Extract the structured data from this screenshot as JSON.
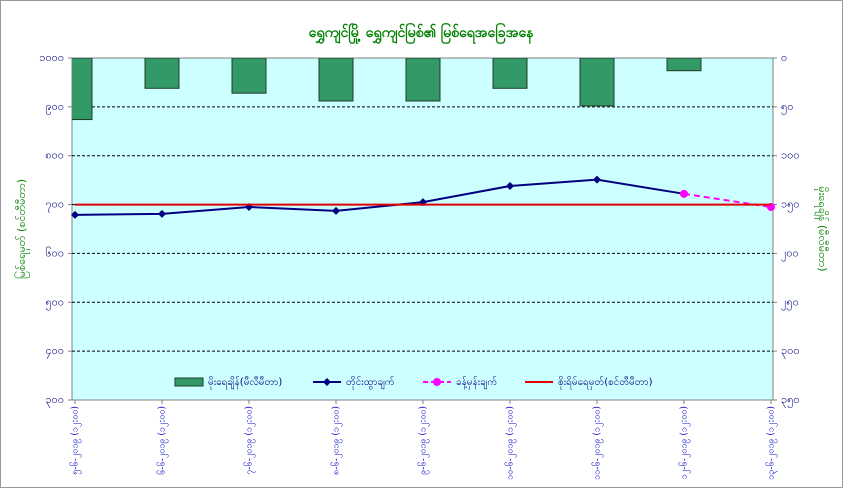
{
  "chart_data": {
    "type": "line",
    "title": "ရွှေကျင်မြို့ ရွှေကျင်မြစ်၏ မြစ်ရေအခြေအနေ",
    "ylabel": "မြစ်ရေမှတ် (စင်တီမီတာ)",
    "y2label": "မိုးရေချိန် (မီလီမီတာ)",
    "categories": [
      "၅-၆-၂၀၁၉ (၁၂:၀၀)",
      "၆-၆-၂၀၁၉ (၁၂:၀၀)",
      "၇-၆-၂၀၁၉ (၁၂:၀၀)",
      "၈-၆-၂၀၁၉ (၁၂:၀၀)",
      "၉-၆-၂၀၁၉ (၁၂:၀၀)",
      "၁၀-၆-၂၀၁၉ (၁၂:၀၀)",
      "၁၁-၆-၂၀၁၉ (၁၂:၀၀)",
      "၁၂-၆-၂၀၁၉ (၁၂:၀၀)",
      "၁၃-၆-၂၀၁၉ (၁၂:၀၀)"
    ],
    "ylim": [
      300,
      1000
    ],
    "yticks": [
      {
        "value": 300,
        "label": "၃၀၀"
      },
      {
        "value": 400,
        "label": "၄၀၀"
      },
      {
        "value": 500,
        "label": "၅၀၀"
      },
      {
        "value": 600,
        "label": "၆၀၀"
      },
      {
        "value": 700,
        "label": "၇၀၀"
      },
      {
        "value": 800,
        "label": "၈၀၀"
      },
      {
        "value": 900,
        "label": "၉၀၀"
      },
      {
        "value": 1000,
        "label": "၁၀၀၀"
      }
    ],
    "y2lim": [
      0,
      350
    ],
    "y2_reversed": true,
    "y2ticks": [
      {
        "value": 0,
        "label": "၀"
      },
      {
        "value": 50,
        "label": "၅၀"
      },
      {
        "value": 100,
        "label": "၁၀၀"
      },
      {
        "value": 150,
        "label": "၁၅၀"
      },
      {
        "value": 200,
        "label": "၂၀၀"
      },
      {
        "value": 250,
        "label": "၂၅၀"
      },
      {
        "value": 300,
        "label": "၃၀၀"
      },
      {
        "value": 350,
        "label": "၃၅၀"
      }
    ],
    "grid": true,
    "background": "#ccffff",
    "series": [
      {
        "name": "မိုးရေချိန်(မီလီမီတာ)",
        "type": "bar",
        "axis": "y2",
        "color": "#339966",
        "values": [
          63,
          31,
          36,
          44,
          44,
          31,
          49,
          13,
          null
        ]
      },
      {
        "name": "တိုင်းထွာချက်",
        "color": "#000080",
        "marker": "diamond",
        "values": [
          679,
          681,
          695,
          687,
          705,
          738,
          751,
          722,
          null
        ]
      },
      {
        "name": "ခန့်မှန်းချက်",
        "color": "#ff00ff",
        "marker": "circle",
        "dashed": true,
        "values": [
          null,
          null,
          null,
          null,
          null,
          null,
          null,
          722,
          695
        ]
      },
      {
        "name": "စိုးရိမ်ရေမှတ်(စင်တီမီတာ)",
        "color": "#e00000",
        "values": [
          700,
          700,
          700,
          700,
          700,
          700,
          700,
          700,
          700
        ]
      }
    ]
  }
}
